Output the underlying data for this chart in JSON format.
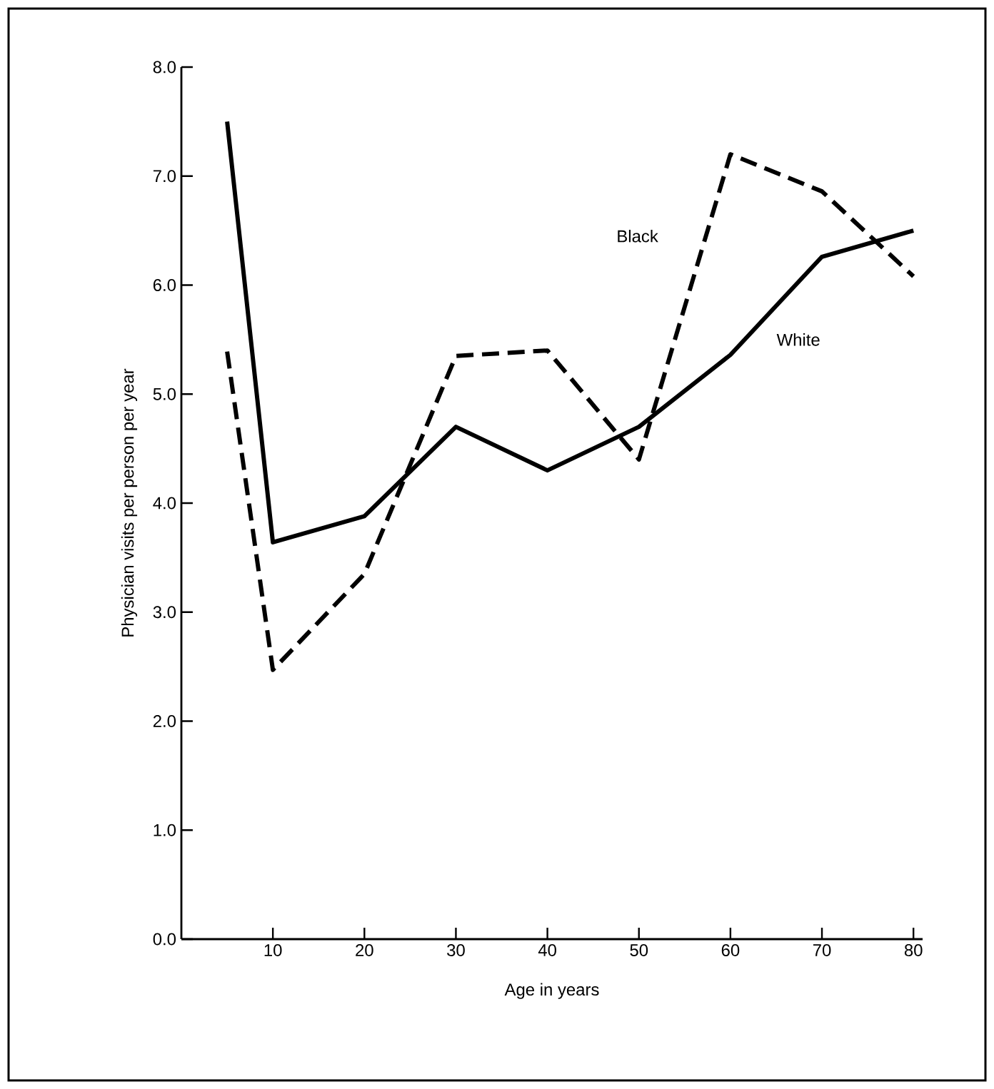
{
  "chart_data": {
    "type": "line",
    "xlabel": "Age in years",
    "ylabel": "Physician visits per person per year",
    "x": [
      5,
      10,
      20,
      30,
      40,
      50,
      60,
      70,
      80
    ],
    "series": [
      {
        "name": "White",
        "color": "#000000",
        "line_style": "solid",
        "values": [
          7.5,
          3.64,
          3.88,
          4.7,
          4.3,
          4.7,
          5.36,
          6.26,
          6.5
        ]
      },
      {
        "name": "Black",
        "color": "#000000",
        "line_style": "dashed",
        "values": [
          5.39,
          2.47,
          3.35,
          5.35,
          5.4,
          4.4,
          7.2,
          6.86,
          6.08
        ]
      }
    ],
    "xlim": [
      0,
      81
    ],
    "ylim": [
      0,
      8
    ],
    "xticks": [
      10,
      20,
      30,
      40,
      50,
      60,
      70,
      80
    ],
    "yticks": [
      {
        "value": 0,
        "label": "0.0"
      },
      {
        "value": 1,
        "label": "1.0"
      },
      {
        "value": 2,
        "label": "2.0"
      },
      {
        "value": 3,
        "label": "3.0"
      },
      {
        "value": 4,
        "label": "4.0"
      },
      {
        "value": 5,
        "label": "5.0"
      },
      {
        "value": 6,
        "label": "6.0"
      },
      {
        "value": 7,
        "label": "7.0"
      },
      {
        "value": 8,
        "label": "8.0"
      }
    ],
    "grid": false,
    "legend": false
  }
}
